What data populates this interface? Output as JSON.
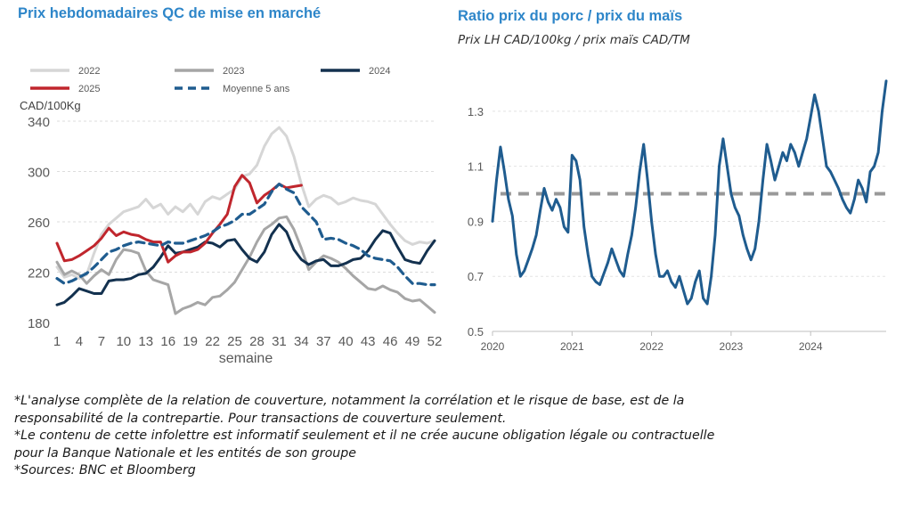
{
  "left": {
    "title": "Prix hebdomadaires QC de mise en marché"
  },
  "right": {
    "title": "Ratio prix du porc / prix du maïs",
    "subtitle": "Prix LH CAD/100kg / prix maïs CAD/TM"
  },
  "notes": [
    "*L'analyse complète de la relation de couverture, notamment la corrélation et le risque de base, est de la",
    "responsabilité de la contrepartie. Pour transactions de couverture seulement.",
    "*Le contenu de cette infolettre est informatif seulement et il ne crée aucune obligation légale ou contractuelle",
    "pour la Banque Nationale et les entités de son groupe",
    "*Sources: BNC et Bloomberg"
  ],
  "chart_data": [
    {
      "type": "line",
      "title": "Prix hebdomadaires QC de mise en marché",
      "xlabel": "semaine",
      "ylabel": "CAD/100Kg",
      "xlim": [
        1,
        52
      ],
      "ylim": [
        180,
        340
      ],
      "x_ticks": [
        1,
        4,
        7,
        10,
        13,
        16,
        19,
        22,
        25,
        28,
        31,
        34,
        37,
        40,
        43,
        46,
        49,
        52
      ],
      "y_ticks": [
        180,
        220,
        260,
        300,
        340
      ],
      "grid": "horizontal dashed",
      "legend_position": "top",
      "series": [
        {
          "name": "2022",
          "color": "#d6d6d6",
          "style": "solid",
          "x": [
            1,
            2,
            3,
            4,
            5,
            6,
            7,
            8,
            9,
            10,
            11,
            12,
            13,
            14,
            15,
            16,
            17,
            18,
            19,
            20,
            21,
            22,
            23,
            24,
            25,
            26,
            27,
            28,
            29,
            30,
            31,
            32,
            33,
            34,
            35,
            36,
            37,
            38,
            39,
            40,
            41,
            42,
            43,
            44,
            45,
            46,
            47,
            48,
            49,
            50,
            51,
            52
          ],
          "values": [
            224,
            216,
            218,
            215,
            218,
            235,
            250,
            258,
            263,
            268,
            270,
            272,
            278,
            271,
            274,
            266,
            272,
            268,
            274,
            266,
            276,
            280,
            278,
            282,
            286,
            296,
            298,
            305,
            320,
            330,
            335,
            328,
            312,
            290,
            272,
            278,
            281,
            279,
            274,
            276,
            279,
            277,
            276,
            274,
            266,
            258,
            251,
            245,
            242,
            244,
            243,
            245
          ]
        },
        {
          "name": "2023",
          "color": "#a6a6a6",
          "style": "solid",
          "x": [
            1,
            2,
            3,
            4,
            5,
            6,
            7,
            8,
            9,
            10,
            11,
            12,
            13,
            14,
            15,
            16,
            17,
            18,
            19,
            20,
            21,
            22,
            23,
            24,
            25,
            26,
            27,
            28,
            29,
            30,
            31,
            32,
            33,
            34,
            35,
            36,
            37,
            38,
            39,
            40,
            41,
            42,
            43,
            44,
            45,
            46,
            47,
            48,
            49,
            50,
            51,
            52
          ],
          "values": [
            228,
            218,
            221,
            218,
            211,
            217,
            222,
            218,
            230,
            238,
            237,
            235,
            221,
            214,
            212,
            210,
            187,
            191,
            193,
            196,
            194,
            200,
            201,
            206,
            212,
            222,
            232,
            244,
            254,
            258,
            263,
            264,
            254,
            239,
            222,
            228,
            233,
            231,
            228,
            223,
            217,
            212,
            207,
            206,
            209,
            206,
            204,
            199,
            197,
            198,
            193,
            188
          ]
        },
        {
          "name": "2024",
          "color": "#13314f",
          "style": "solid",
          "x": [
            1,
            2,
            3,
            4,
            5,
            6,
            7,
            8,
            9,
            10,
            11,
            12,
            13,
            14,
            15,
            16,
            17,
            18,
            19,
            20,
            21,
            22,
            23,
            24,
            25,
            26,
            27,
            28,
            29,
            30,
            31,
            32,
            33,
            34,
            35,
            36,
            37,
            38,
            39,
            40,
            41,
            42,
            43,
            44,
            45,
            46,
            47,
            48,
            49,
            50,
            51,
            52
          ],
          "values": [
            194,
            196,
            201,
            207,
            205,
            203,
            203,
            213,
            214,
            214,
            215,
            218,
            219,
            224,
            232,
            241,
            235,
            236,
            238,
            240,
            244,
            243,
            240,
            245,
            246,
            238,
            231,
            228,
            236,
            250,
            258,
            252,
            238,
            230,
            226,
            229,
            230,
            225,
            225,
            227,
            230,
            231,
            237,
            246,
            253,
            251,
            240,
            230,
            228,
            227,
            237,
            245
          ]
        },
        {
          "name": "2025",
          "color": "#c0262d",
          "style": "solid",
          "x": [
            1,
            2,
            3,
            4,
            5,
            6,
            7,
            8,
            9,
            10,
            11,
            12,
            13,
            14,
            15,
            16,
            17,
            18,
            19,
            20,
            21,
            22,
            23,
            24,
            25,
            26,
            27,
            28,
            29,
            30,
            31,
            32,
            33,
            34
          ],
          "values": [
            243,
            229,
            230,
            233,
            237,
            241,
            247,
            255,
            249,
            252,
            250,
            249,
            246,
            244,
            244,
            228,
            233,
            236,
            236,
            238,
            243,
            251,
            258,
            266,
            288,
            297,
            291,
            275,
            281,
            285,
            290,
            287,
            288,
            289
          ]
        },
        {
          "name": "Moyenne 5 ans",
          "color": "#1f5c8f",
          "style": "dashed",
          "x": [
            1,
            2,
            3,
            4,
            5,
            6,
            7,
            8,
            9,
            10,
            11,
            12,
            13,
            14,
            15,
            16,
            17,
            18,
            19,
            20,
            21,
            22,
            23,
            24,
            25,
            26,
            27,
            28,
            29,
            30,
            31,
            32,
            33,
            34,
            35,
            36,
            37,
            38,
            39,
            40,
            41,
            42,
            43,
            44,
            45,
            46,
            47,
            48,
            49,
            50,
            51,
            52
          ],
          "values": [
            215,
            211,
            213,
            216,
            219,
            224,
            230,
            236,
            238,
            241,
            243,
            244,
            243,
            242,
            241,
            244,
            243,
            243,
            245,
            247,
            249,
            252,
            256,
            258,
            261,
            266,
            266,
            270,
            274,
            284,
            290,
            286,
            283,
            272,
            266,
            260,
            246,
            247,
            246,
            243,
            241,
            238,
            233,
            231,
            230,
            229,
            224,
            217,
            211,
            211,
            210,
            210
          ]
        }
      ]
    },
    {
      "type": "line",
      "title": "Ratio prix du porc / prix du maïs",
      "ylabel": "Prix LH CAD/100kg / prix maïs CAD/TM",
      "xlim": [
        2020.0,
        2024.95
      ],
      "ylim": [
        0.5,
        1.4
      ],
      "x_ticks": [
        "2020",
        "2021",
        "2022",
        "2023",
        "2024"
      ],
      "y_ticks": [
        0.5,
        0.7,
        0.9,
        1.1,
        1.3
      ],
      "grid": "horizontal dashed",
      "reference_line": {
        "y": 1.0,
        "color": "#999999",
        "style": "dashed"
      },
      "series": [
        {
          "color": "#1f5c8f",
          "x": [
            2020.0,
            2020.05,
            2020.1,
            2020.15,
            2020.2,
            2020.25,
            2020.3,
            2020.35,
            2020.4,
            2020.45,
            2020.5,
            2020.55,
            2020.6,
            2020.65,
            2020.7,
            2020.75,
            2020.8,
            2020.85,
            2020.9,
            2020.95,
            2021.0,
            2021.05,
            2021.1,
            2021.15,
            2021.2,
            2021.25,
            2021.3,
            2021.35,
            2021.4,
            2021.45,
            2021.5,
            2021.55,
            2021.6,
            2021.65,
            2021.7,
            2021.75,
            2021.8,
            2021.85,
            2021.9,
            2021.95,
            2022.0,
            2022.05,
            2022.1,
            2022.15,
            2022.2,
            2022.25,
            2022.3,
            2022.35,
            2022.4,
            2022.45,
            2022.5,
            2022.55,
            2022.6,
            2022.65,
            2022.7,
            2022.75,
            2022.8,
            2022.85,
            2022.9,
            2022.95,
            2023.0,
            2023.05,
            2023.1,
            2023.15,
            2023.2,
            2023.25,
            2023.3,
            2023.35,
            2023.4,
            2023.45,
            2023.5,
            2023.55,
            2023.6,
            2023.65,
            2023.7,
            2023.75,
            2023.8,
            2023.85,
            2023.9,
            2023.95,
            2024.0,
            2024.05,
            2024.1,
            2024.15,
            2024.2,
            2024.25,
            2024.3,
            2024.35,
            2024.4,
            2024.45,
            2024.5,
            2024.55,
            2024.6,
            2024.65,
            2024.7,
            2024.75,
            2024.8,
            2024.85,
            2024.9,
            2024.95
          ],
          "values": [
            0.9,
            1.05,
            1.17,
            1.08,
            0.98,
            0.92,
            0.78,
            0.7,
            0.72,
            0.76,
            0.8,
            0.85,
            0.94,
            1.02,
            0.97,
            0.94,
            0.98,
            0.95,
            0.88,
            0.86,
            1.14,
            1.12,
            1.05,
            0.88,
            0.78,
            0.7,
            0.68,
            0.67,
            0.71,
            0.75,
            0.8,
            0.76,
            0.72,
            0.7,
            0.78,
            0.85,
            0.95,
            1.08,
            1.18,
            1.05,
            0.9,
            0.78,
            0.7,
            0.7,
            0.72,
            0.68,
            0.66,
            0.7,
            0.65,
            0.6,
            0.62,
            0.68,
            0.72,
            0.62,
            0.6,
            0.7,
            0.85,
            1.1,
            1.2,
            1.1,
            1.0,
            0.95,
            0.92,
            0.85,
            0.8,
            0.76,
            0.8,
            0.9,
            1.05,
            1.18,
            1.12,
            1.05,
            1.1,
            1.15,
            1.12,
            1.18,
            1.15,
            1.1,
            1.15,
            1.2,
            1.28,
            1.36,
            1.3,
            1.2,
            1.1,
            1.08,
            1.05,
            1.02,
            0.98,
            0.95,
            0.93,
            0.98,
            1.05,
            1.02,
            0.97,
            1.08,
            1.1,
            1.15,
            1.3,
            1.41
          ]
        }
      ]
    }
  ]
}
